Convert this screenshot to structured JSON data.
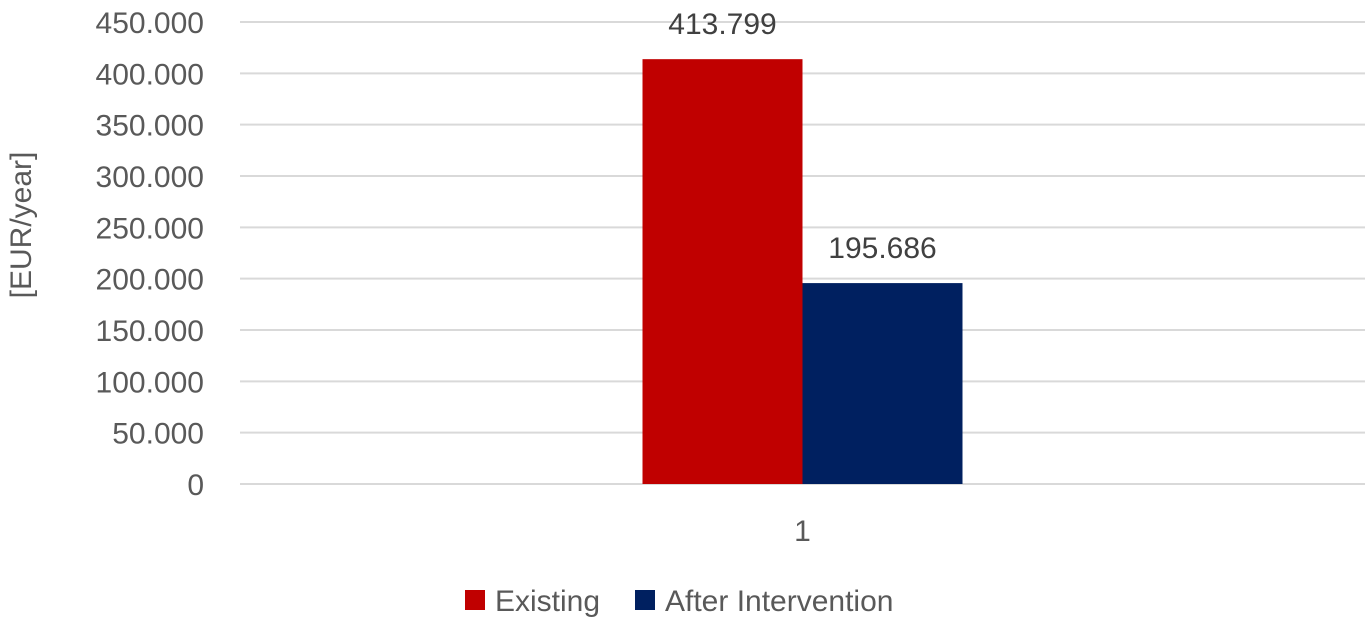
{
  "chart_data": {
    "type": "bar",
    "categories": [
      "1"
    ],
    "series": [
      {
        "name": "Existing",
        "values": [
          413799
        ],
        "label": "413.799",
        "color": "#c00000"
      },
      {
        "name": "After Intervention",
        "values": [
          195686
        ],
        "label": "195.686",
        "color": "#002060"
      }
    ],
    "ylabel": "[EUR/year]",
    "xlabel": "",
    "ylim": [
      0,
      450000
    ],
    "y_ticks": [
      0,
      50000,
      100000,
      150000,
      200000,
      250000,
      300000,
      350000,
      400000,
      450000
    ],
    "y_tick_labels": [
      "0",
      "50.000",
      "100.000",
      "150.000",
      "200.000",
      "250.000",
      "300.000",
      "350.000",
      "400.000",
      "450.000"
    ],
    "grid": true,
    "legend": "bottom"
  }
}
